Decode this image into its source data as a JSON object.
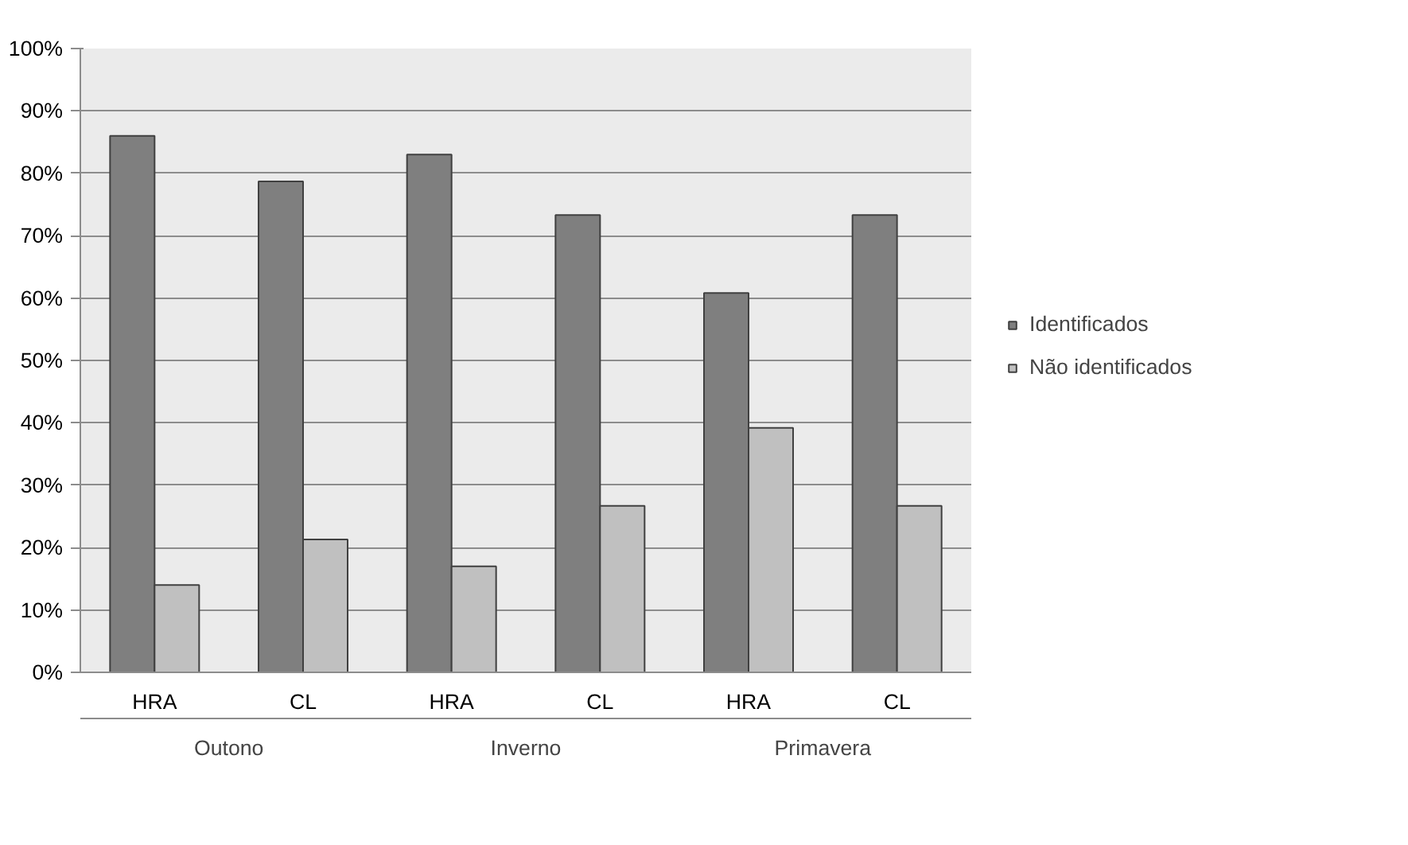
{
  "chart_data": {
    "type": "bar",
    "categories": [
      "HRA",
      "CL",
      "HRA",
      "CL",
      "HRA",
      "CL"
    ],
    "series": [
      {
        "name": "Identificados",
        "color": "#7f7f7f",
        "values": [
          86,
          78.7,
          83,
          73.3,
          60.8,
          73.3
        ]
      },
      {
        "name": "Não identificados",
        "color": "#c0c0c0",
        "values": [
          14,
          21.3,
          17,
          26.7,
          39.2,
          26.7
        ]
      }
    ],
    "annotations": [
      "Outono",
      "Inverno",
      "Primavera"
    ],
    "ylim": [
      0,
      100
    ],
    "yticks": [
      {
        "value": 0,
        "label": "0%"
      },
      {
        "value": 10,
        "label": "10%"
      },
      {
        "value": 20,
        "label": "20%"
      },
      {
        "value": 30,
        "label": "30%"
      },
      {
        "value": 40,
        "label": "40%"
      },
      {
        "value": 50,
        "label": "50%"
      },
      {
        "value": 60,
        "label": "60%"
      },
      {
        "value": 70,
        "label": "70%"
      },
      {
        "value": 80,
        "label": "80%"
      },
      {
        "value": 90,
        "label": "90%"
      },
      {
        "value": 100,
        "label": "100%"
      }
    ],
    "grid": "y",
    "legend": "right"
  }
}
